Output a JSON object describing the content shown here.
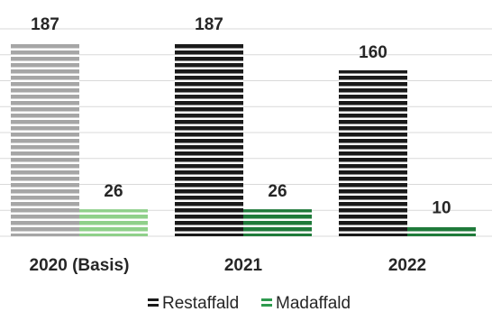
{
  "chart_data": {
    "type": "bar",
    "categories": [
      "2020 (Basis)",
      "2021",
      "2022"
    ],
    "series": [
      {
        "name": "Restaffald",
        "values": [
          187,
          187,
          160
        ],
        "colors": [
          "#a6a6a6",
          "#1a1a1a",
          "#1a1a1a"
        ]
      },
      {
        "name": "Madaffald",
        "values": [
          26,
          26,
          10
        ],
        "colors": [
          "#8fd08a",
          "#1f7a3a",
          "#1f7a3a"
        ]
      }
    ],
    "data_labels": true,
    "gridlines": true,
    "ylim": [
      0,
      200
    ],
    "legend_position": "bottom",
    "legend_colors": [
      "#1a1a1a",
      "#2e9a4e"
    ],
    "gridline_color": "#d9d9d9"
  }
}
